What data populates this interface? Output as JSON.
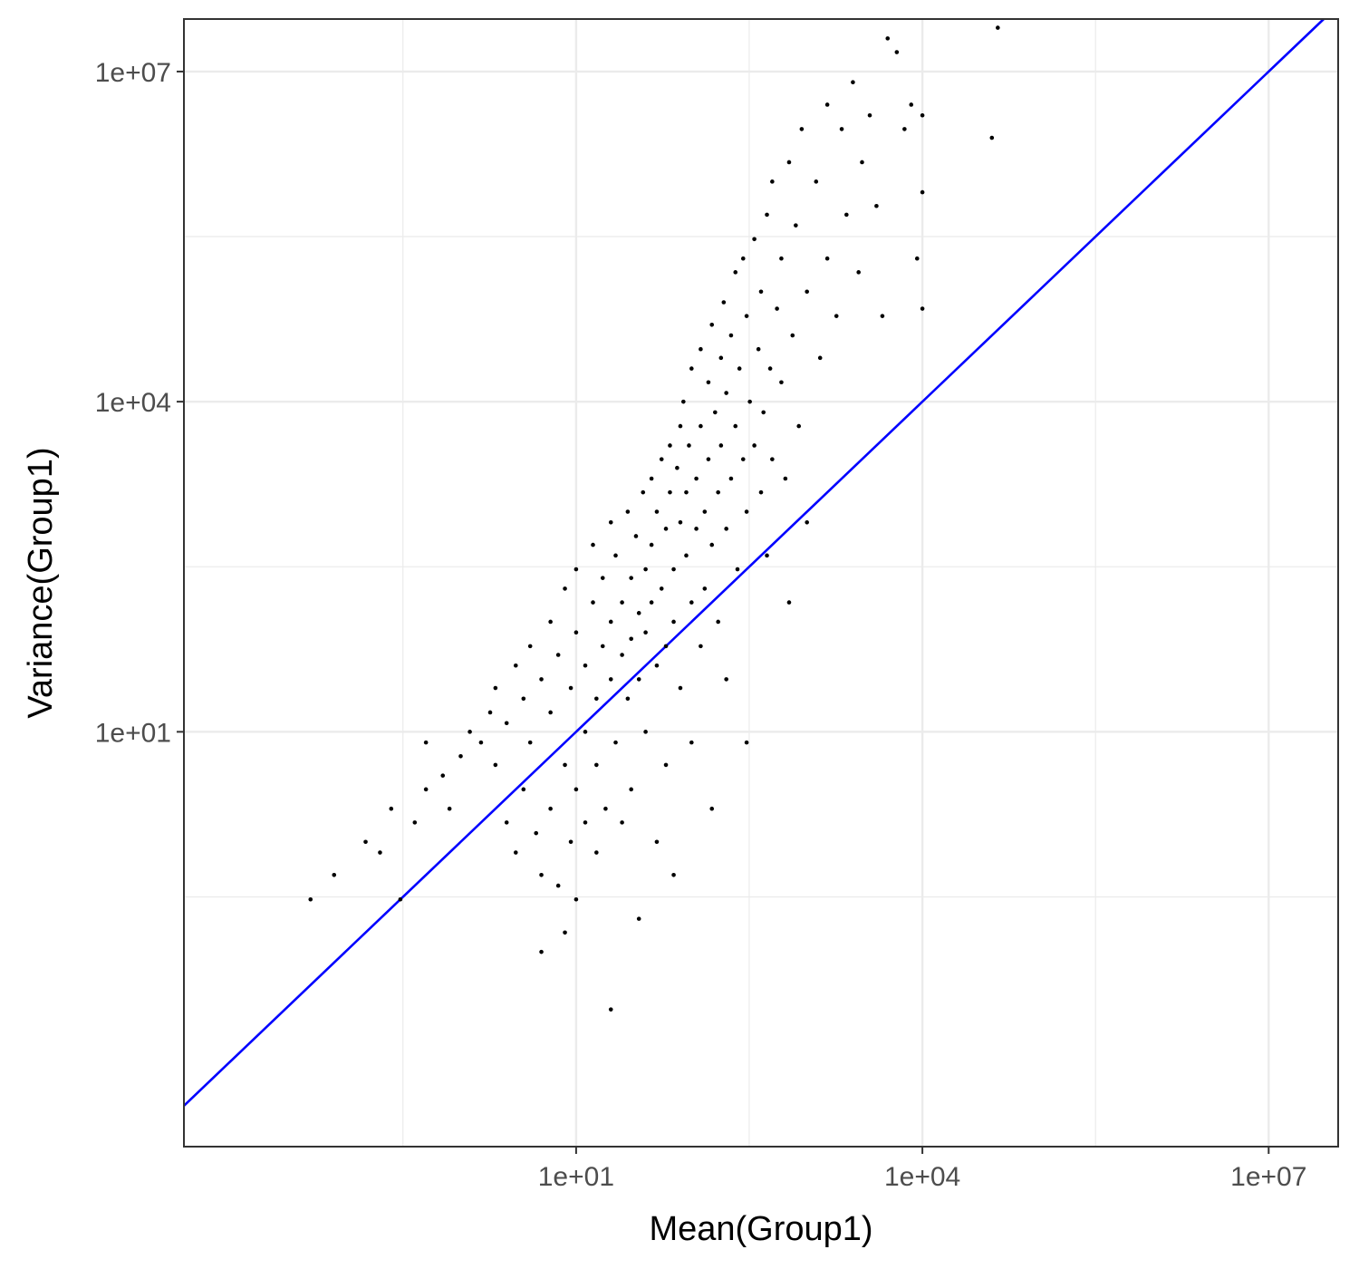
{
  "chart_data": {
    "type": "scatter",
    "title": "",
    "xlabel": "Mean(Group1)",
    "ylabel": "Variance(Group1)",
    "x_scale": "log10",
    "y_scale": "log10",
    "xlim": [
      0.004,
      40000000
    ],
    "ylim": [
      0.0017,
      30000000
    ],
    "x_ticks": [
      {
        "value": 10,
        "label": "1e+01"
      },
      {
        "value": 10000,
        "label": "1e+04"
      },
      {
        "value": 10000000,
        "label": "1e+07"
      }
    ],
    "y_ticks": [
      {
        "value": 10,
        "label": "1e+01"
      },
      {
        "value": 10000,
        "label": "1e+04"
      },
      {
        "value": 10000000,
        "label": "1e+07"
      }
    ],
    "x_minor_gridlines": [
      0.316,
      316,
      316228
    ],
    "y_minor_gridlines": [
      0.316,
      316,
      316228
    ],
    "grid": true,
    "background": "#ffffff",
    "grid_color": "#ebebeb",
    "point_color": "#000000",
    "reference_line": {
      "type": "identity",
      "slope": 1,
      "intercept": 0,
      "color": "#0000ff"
    },
    "series": [
      {
        "points": [
          [
            0.05,
            0.3
          ],
          [
            0.08,
            0.5
          ],
          [
            0.15,
            1.0
          ],
          [
            0.2,
            0.8
          ],
          [
            0.25,
            2.0
          ],
          [
            0.3,
            0.3
          ],
          [
            0.4,
            1.5
          ],
          [
            0.5,
            3.0
          ],
          [
            0.5,
            8.0
          ],
          [
            0.7,
            4.0
          ],
          [
            0.8,
            2.0
          ],
          [
            1.0,
            6.0
          ],
          [
            1.2,
            10.0
          ],
          [
            1.5,
            8.0
          ],
          [
            1.8,
            15.0
          ],
          [
            2.0,
            5.0
          ],
          [
            2.0,
            25.0
          ],
          [
            2.5,
            12.0
          ],
          [
            2.5,
            1.5
          ],
          [
            3.0,
            0.8
          ],
          [
            3.0,
            40.0
          ],
          [
            3.5,
            20.0
          ],
          [
            3.5,
            3.0
          ],
          [
            4.0,
            8.0
          ],
          [
            4.0,
            60.0
          ],
          [
            4.5,
            1.2
          ],
          [
            5.0,
            30.0
          ],
          [
            5.0,
            0.5
          ],
          [
            5.0,
            0.1
          ],
          [
            6.0,
            15.0
          ],
          [
            6.0,
            100.0
          ],
          [
            6.0,
            2.0
          ],
          [
            7.0,
            50.0
          ],
          [
            7.0,
            0.4
          ],
          [
            8.0,
            5.0
          ],
          [
            8.0,
            200.0
          ],
          [
            8.0,
            0.15
          ],
          [
            9.0,
            25.0
          ],
          [
            9.0,
            1.0
          ],
          [
            10.0,
            80.0
          ],
          [
            10.0,
            300.0
          ],
          [
            10.0,
            3.0
          ],
          [
            10.0,
            0.3
          ],
          [
            12.0,
            40.0
          ],
          [
            12.0,
            10.0
          ],
          [
            12.0,
            1.5
          ],
          [
            14.0,
            150.0
          ],
          [
            14.0,
            500.0
          ],
          [
            15.0,
            20.0
          ],
          [
            15.0,
            5.0
          ],
          [
            15.0,
            0.8
          ],
          [
            17.0,
            250.0
          ],
          [
            17.0,
            60.0
          ],
          [
            18.0,
            2.0
          ],
          [
            20.0,
            100.0
          ],
          [
            20.0,
            30.0
          ],
          [
            20.0,
            800.0
          ],
          [
            20.0,
            0.03
          ],
          [
            22.0,
            8.0
          ],
          [
            22.0,
            400.0
          ],
          [
            25.0,
            150.0
          ],
          [
            25.0,
            50.0
          ],
          [
            25.0,
            1.5
          ],
          [
            28.0,
            1000.0
          ],
          [
            28.0,
            20.0
          ],
          [
            30.0,
            250.0
          ],
          [
            30.0,
            70.0
          ],
          [
            30.0,
            3.0
          ],
          [
            33.0,
            600.0
          ],
          [
            35.0,
            120.0
          ],
          [
            35.0,
            30.0
          ],
          [
            35.0,
            0.2
          ],
          [
            38.0,
            1500.0
          ],
          [
            40.0,
            300.0
          ],
          [
            40.0,
            80.0
          ],
          [
            40.0,
            10.0
          ],
          [
            45.0,
            2000.0
          ],
          [
            45.0,
            500.0
          ],
          [
            45.0,
            150.0
          ],
          [
            50.0,
            40.0
          ],
          [
            50.0,
            1.0
          ],
          [
            50.0,
            1000.0
          ],
          [
            55.0,
            3000.0
          ],
          [
            55.0,
            200.0
          ],
          [
            60.0,
            700.0
          ],
          [
            60.0,
            60.0
          ],
          [
            60.0,
            5.0
          ],
          [
            65.0,
            4000.0
          ],
          [
            65.0,
            1500.0
          ],
          [
            70.0,
            300.0
          ],
          [
            70.0,
            100.0
          ],
          [
            70.0,
            0.5
          ],
          [
            75.0,
            2500.0
          ],
          [
            80.0,
            6000.0
          ],
          [
            80.0,
            800.0
          ],
          [
            80.0,
            25.0
          ],
          [
            85.0,
            10000.0
          ],
          [
            90.0,
            400.0
          ],
          [
            90.0,
            1500.0
          ],
          [
            95.0,
            4000.0
          ],
          [
            100.0,
            150.0
          ],
          [
            100.0,
            20000.0
          ],
          [
            100.0,
            8.0
          ],
          [
            110.0,
            2000.0
          ],
          [
            110.0,
            700.0
          ],
          [
            120.0,
            30000.0
          ],
          [
            120.0,
            6000.0
          ],
          [
            120.0,
            60.0
          ],
          [
            130.0,
            1000.0
          ],
          [
            130.0,
            200.0
          ],
          [
            140.0,
            15000.0
          ],
          [
            140.0,
            3000.0
          ],
          [
            150.0,
            50000.0
          ],
          [
            150.0,
            500.0
          ],
          [
            150.0,
            2.0
          ],
          [
            160.0,
            8000.0
          ],
          [
            170.0,
            1500.0
          ],
          [
            170.0,
            100.0
          ],
          [
            180.0,
            25000.0
          ],
          [
            180.0,
            4000.0
          ],
          [
            190.0,
            80000.0
          ],
          [
            200.0,
            12000.0
          ],
          [
            200.0,
            700.0
          ],
          [
            200.0,
            30.0
          ],
          [
            220.0,
            2000.0
          ],
          [
            220.0,
            40000.0
          ],
          [
            240.0,
            6000.0
          ],
          [
            240.0,
            150000.0
          ],
          [
            250.0,
            300.0
          ],
          [
            260.0,
            20000.0
          ],
          [
            280.0,
            3000.0
          ],
          [
            280.0,
            200000.0
          ],
          [
            300.0,
            60000.0
          ],
          [
            300.0,
            1000.0
          ],
          [
            300.0,
            8.0
          ],
          [
            320.0,
            10000.0
          ],
          [
            350.0,
            300000.0
          ],
          [
            350.0,
            4000.0
          ],
          [
            380.0,
            30000.0
          ],
          [
            400.0,
            1500.0
          ],
          [
            400.0,
            100000.0
          ],
          [
            420.0,
            8000.0
          ],
          [
            450.0,
            500000.0
          ],
          [
            450.0,
            400.0
          ],
          [
            480.0,
            20000.0
          ],
          [
            500.0,
            1000000.0
          ],
          [
            500.0,
            3000.0
          ],
          [
            550.0,
            70000.0
          ],
          [
            600.0,
            200000.0
          ],
          [
            600.0,
            15000.0
          ],
          [
            650.0,
            2000.0
          ],
          [
            700.0,
            1500000.0
          ],
          [
            700.0,
            150.0
          ],
          [
            750.0,
            40000.0
          ],
          [
            800.0,
            400000.0
          ],
          [
            850.0,
            6000.0
          ],
          [
            900.0,
            3000000.0
          ],
          [
            1000.0,
            100000.0
          ],
          [
            1000.0,
            800.0
          ],
          [
            1200.0,
            1000000.0
          ],
          [
            1300.0,
            25000.0
          ],
          [
            1500.0,
            5000000.0
          ],
          [
            1500.0,
            200000.0
          ],
          [
            1800.0,
            60000.0
          ],
          [
            2000.0,
            3000000.0
          ],
          [
            2200.0,
            500000.0
          ],
          [
            2500.0,
            8000000.0
          ],
          [
            2800.0,
            150000.0
          ],
          [
            3000.0,
            1500000.0
          ],
          [
            3500.0,
            4000000.0
          ],
          [
            4000.0,
            600000.0
          ],
          [
            4500.0,
            60000.0
          ],
          [
            5000.0,
            20000000.0
          ],
          [
            6000.0,
            15000000.0
          ],
          [
            7000.0,
            3000000.0
          ],
          [
            8000.0,
            5000000.0
          ],
          [
            9000.0,
            200000.0
          ],
          [
            10000.0,
            4000000.0
          ],
          [
            10000.0,
            800000.0
          ],
          [
            10000.0,
            70000.0
          ],
          [
            40000.0,
            2500000.0
          ],
          [
            45000.0,
            25000000.0
          ]
        ]
      }
    ]
  }
}
